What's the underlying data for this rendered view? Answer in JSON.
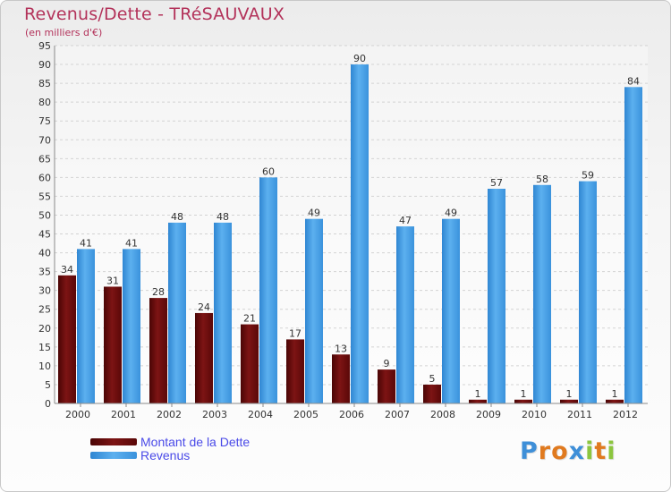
{
  "title": "Revenus/Dette - TRéSAUVAUX",
  "subtitle": "(en milliers d'€)",
  "colors": {
    "dette": "#6b0b0b",
    "revenus": "#3c96df",
    "title": "#b3325a",
    "legend_text": "#4a4ae8"
  },
  "chart_data": {
    "type": "bar",
    "title": "Revenus/Dette - TRéSAUVAUX",
    "ylabel": "(en milliers d'€)",
    "xlabel": "",
    "ylim": [
      0,
      95
    ],
    "ytick_step": 5,
    "yticks": [
      "0",
      "5",
      "10",
      "15",
      "20",
      "25",
      "30",
      "35",
      "40",
      "45",
      "50",
      "55",
      "60",
      "65",
      "70",
      "75",
      "80",
      "85",
      "90",
      "95"
    ],
    "grid": true,
    "categories": [
      "2000",
      "2001",
      "2002",
      "2003",
      "2004",
      "2005",
      "2006",
      "2007",
      "2008",
      "2009",
      "2010",
      "2011",
      "2012"
    ],
    "series": [
      {
        "name": "Montant de la Dette",
        "key": "dette",
        "values": [
          34,
          31,
          28,
          24,
          21,
          17,
          13,
          9,
          5,
          1,
          1,
          1,
          1
        ],
        "labels": [
          "34",
          "31",
          "28",
          "24",
          "21",
          "17",
          "13",
          "9",
          "5",
          "1",
          "1",
          "1",
          "1"
        ]
      },
      {
        "name": "Revenus",
        "key": "revenus",
        "values": [
          41,
          41,
          48,
          48,
          60,
          49,
          90,
          47,
          49,
          57,
          58,
          59,
          84
        ],
        "labels": [
          "41",
          "41",
          "48",
          "48",
          "60",
          "49",
          "90",
          "47",
          "49",
          "57",
          "58",
          "59",
          "84"
        ]
      }
    ],
    "legend_position": "bottom-left"
  },
  "legend": [
    {
      "label": "Montant de la Dette",
      "color": "#6b0b0b"
    },
    {
      "label": "Revenus",
      "color": "#3c96df"
    }
  ],
  "logo": {
    "letters": [
      "P",
      "r",
      "o",
      "x",
      "i",
      "t",
      "i"
    ]
  }
}
